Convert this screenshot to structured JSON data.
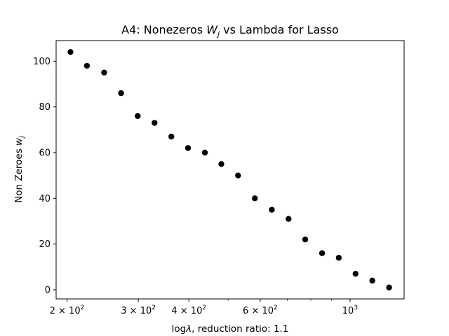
{
  "chart_data": {
    "type": "scatter",
    "title": {
      "pre": "A4: Nonezeros ",
      "var": "W",
      "sub": "j",
      "post": " vs Lambda for Lasso"
    },
    "xlabel": {
      "pre": "log",
      "sym": "λ",
      "post": ", reduction ratio: 1.1"
    },
    "ylabel": {
      "pre": "Non Zeroes ",
      "var": "w",
      "sub": "j"
    },
    "x_scale": "log",
    "xlim": [
      188,
      1360
    ],
    "ylim": [
      -4,
      109
    ],
    "marker_color": "#000000",
    "grid": false,
    "x_ticks": [
      {
        "value": 200,
        "base": "2",
        "exp": "2"
      },
      {
        "value": 300,
        "base": "3",
        "exp": "2"
      },
      {
        "value": 400,
        "base": "4",
        "exp": "2"
      },
      {
        "value": 600,
        "base": "6",
        "exp": "2"
      },
      {
        "value": 1000,
        "base": "",
        "exp": "3"
      }
    ],
    "y_ticks": [
      "0",
      "20",
      "40",
      "60",
      "80",
      "100"
    ],
    "x": [
      204,
      224,
      247,
      272,
      299,
      329,
      362,
      398,
      438,
      481,
      529,
      582,
      641,
      705,
      775,
      853,
      938,
      1032,
      1135,
      1249
    ],
    "y": [
      104,
      98,
      95,
      86,
      76,
      73,
      67,
      62,
      60,
      55,
      50,
      40,
      35,
      31,
      22,
      16,
      14,
      7,
      4,
      1
    ]
  }
}
